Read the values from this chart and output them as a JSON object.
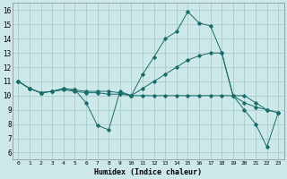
{
  "xlabel": "Humidex (Indice chaleur)",
  "background_color": "#cce8e8",
  "grid_color": "#aacccc",
  "line_color": "#1a6b6b",
  "xlim": [
    -0.5,
    23.5
  ],
  "ylim": [
    5.5,
    16.5
  ],
  "xticks": [
    0,
    1,
    2,
    3,
    4,
    5,
    6,
    7,
    8,
    9,
    10,
    11,
    12,
    13,
    14,
    15,
    16,
    17,
    18,
    19,
    20,
    21,
    22,
    23
  ],
  "yticks": [
    6,
    7,
    8,
    9,
    10,
    11,
    12,
    13,
    14,
    15,
    16
  ],
  "lines": [
    {
      "x": [
        0,
        1,
        2,
        3,
        4,
        5,
        6,
        7,
        8,
        9,
        10,
        11,
        12,
        13,
        14,
        15,
        16,
        17,
        18,
        19,
        20,
        21,
        22,
        23
      ],
      "y": [
        11.0,
        10.5,
        10.2,
        10.3,
        10.5,
        10.4,
        9.5,
        7.9,
        7.6,
        10.3,
        10.0,
        11.5,
        12.7,
        14.0,
        14.5,
        15.9,
        15.1,
        14.9,
        13.0,
        10.0,
        9.0,
        8.0,
        6.4,
        8.8
      ]
    },
    {
      "x": [
        0,
        1,
        2,
        3,
        4,
        5,
        6,
        7,
        8,
        9,
        10,
        11,
        12,
        13,
        14,
        15,
        16,
        17,
        18,
        19,
        20,
        21,
        22,
        23
      ],
      "y": [
        11.0,
        10.5,
        10.2,
        10.3,
        10.5,
        10.4,
        10.3,
        10.3,
        10.3,
        10.2,
        10.0,
        10.5,
        11.0,
        11.5,
        12.0,
        12.5,
        12.8,
        13.0,
        13.0,
        10.0,
        9.5,
        9.2,
        9.0,
        8.8
      ]
    },
    {
      "x": [
        0,
        1,
        2,
        3,
        4,
        5,
        6,
        7,
        8,
        9,
        10,
        11,
        12,
        13,
        14,
        15,
        16,
        17,
        18,
        19,
        20,
        21,
        22,
        23
      ],
      "y": [
        11.0,
        10.5,
        10.2,
        10.3,
        10.4,
        10.3,
        10.2,
        10.2,
        10.1,
        10.1,
        10.0,
        10.0,
        10.0,
        10.0,
        10.0,
        10.0,
        10.0,
        10.0,
        10.0,
        10.0,
        10.0,
        9.5,
        9.0,
        8.8
      ]
    }
  ]
}
